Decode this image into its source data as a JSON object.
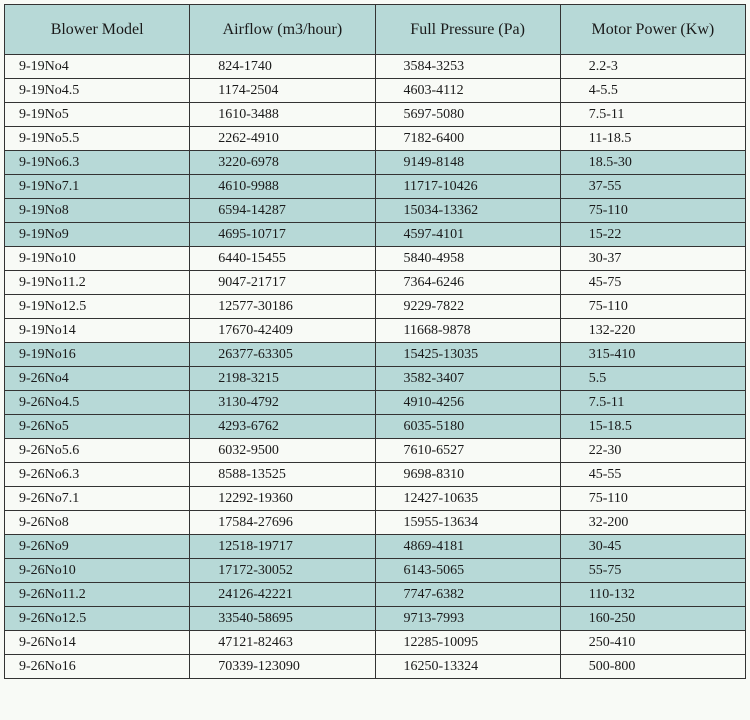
{
  "table": {
    "type": "table",
    "background_color": "#f8faf6",
    "highlight_color": "#b7d9d7",
    "border_color": "#333333",
    "header_font_size_pt": 12,
    "body_font_size_pt": 10.5,
    "columns": [
      "Blower Model",
      "Airflow (m3/hour)",
      "Full Pressure (Pa)",
      "Motor Power (Kw)"
    ],
    "rows": [
      {
        "cells": [
          "9-19No4",
          "824-1740",
          "3584-3253",
          "2.2-3"
        ],
        "highlight": false
      },
      {
        "cells": [
          "9-19No4.5",
          "1174-2504",
          "4603-4112",
          "4-5.5"
        ],
        "highlight": false
      },
      {
        "cells": [
          "9-19No5",
          "1610-3488",
          "5697-5080",
          "7.5-11"
        ],
        "highlight": false
      },
      {
        "cells": [
          "9-19No5.5",
          "2262-4910",
          "7182-6400",
          "11-18.5"
        ],
        "highlight": false
      },
      {
        "cells": [
          "9-19No6.3",
          "3220-6978",
          "9149-8148",
          "18.5-30"
        ],
        "highlight": true
      },
      {
        "cells": [
          "9-19No7.1",
          "4610-9988",
          "11717-10426",
          "37-55"
        ],
        "highlight": true
      },
      {
        "cells": [
          "9-19No8",
          "6594-14287",
          "15034-13362",
          "75-110"
        ],
        "highlight": true
      },
      {
        "cells": [
          "9-19No9",
          "4695-10717",
          "4597-4101",
          "15-22"
        ],
        "highlight": true
      },
      {
        "cells": [
          "9-19No10",
          "6440-15455",
          "5840-4958",
          "30-37"
        ],
        "highlight": false
      },
      {
        "cells": [
          "9-19No11.2",
          "9047-21717",
          "7364-6246",
          "45-75"
        ],
        "highlight": false
      },
      {
        "cells": [
          "9-19No12.5",
          "12577-30186",
          "9229-7822",
          "75-110"
        ],
        "highlight": false
      },
      {
        "cells": [
          "9-19No14",
          "17670-42409",
          "11668-9878",
          "132-220"
        ],
        "highlight": false
      },
      {
        "cells": [
          "9-19No16",
          "26377-63305",
          "15425-13035",
          "315-410"
        ],
        "highlight": true
      },
      {
        "cells": [
          "9-26No4",
          "2198-3215",
          "3582-3407",
          "5.5"
        ],
        "highlight": true
      },
      {
        "cells": [
          "9-26No4.5",
          "3130-4792",
          "4910-4256",
          "7.5-11"
        ],
        "highlight": true
      },
      {
        "cells": [
          "9-26No5",
          "4293-6762",
          "6035-5180",
          "15-18.5"
        ],
        "highlight": true
      },
      {
        "cells": [
          "9-26No5.6",
          "6032-9500",
          "7610-6527",
          "22-30"
        ],
        "highlight": false
      },
      {
        "cells": [
          "9-26No6.3",
          "8588-13525",
          "9698-8310",
          "45-55"
        ],
        "highlight": false
      },
      {
        "cells": [
          "9-26No7.1",
          "12292-19360",
          "12427-10635",
          "75-110"
        ],
        "highlight": false
      },
      {
        "cells": [
          "9-26No8",
          "17584-27696",
          "15955-13634",
          "32-200"
        ],
        "highlight": false
      },
      {
        "cells": [
          "9-26No9",
          "12518-19717",
          "4869-4181",
          "30-45"
        ],
        "highlight": true
      },
      {
        "cells": [
          "9-26No10",
          "17172-30052",
          "6143-5065",
          "55-75"
        ],
        "highlight": true
      },
      {
        "cells": [
          "9-26No11.2",
          "24126-42221",
          "7747-6382",
          "110-132"
        ],
        "highlight": true
      },
      {
        "cells": [
          "9-26No12.5",
          "33540-58695",
          "9713-7993",
          "160-250"
        ],
        "highlight": true
      },
      {
        "cells": [
          "9-26No14",
          "47121-82463",
          "12285-10095",
          "250-410"
        ],
        "highlight": false
      },
      {
        "cells": [
          "9-26No16",
          "70339-123090",
          "16250-13324",
          "500-800"
        ],
        "highlight": false
      }
    ]
  }
}
